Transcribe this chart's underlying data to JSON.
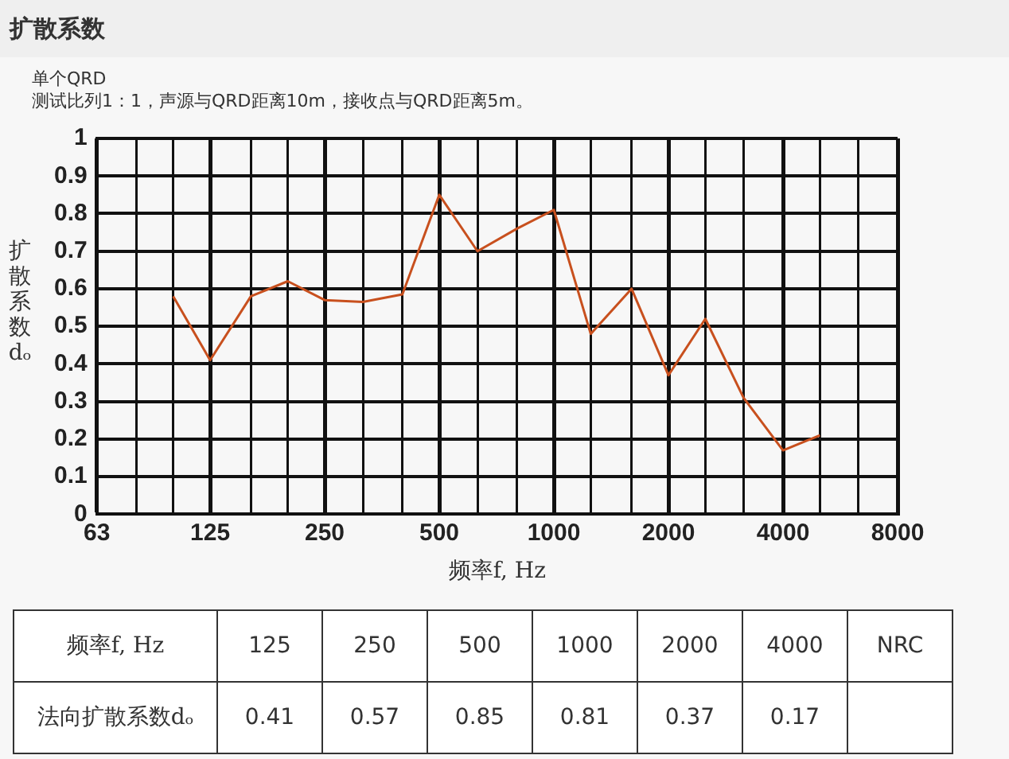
{
  "chart_data": [
    {
      "type": "line",
      "title": "扩散系数",
      "subtitle": "单个QRD",
      "annotations": [
        "测试比列1：1，声源与QRD距离10m，接收点与QRD距离5m。"
      ],
      "xlabel": "频率f, Hz",
      "ylabel": "扩散系数dₒ",
      "log": "x",
      "x": [
        100,
        125,
        160,
        200,
        250,
        315,
        400,
        500,
        630,
        800,
        1000,
        1250,
        1600,
        2000,
        2500,
        3150,
        4000,
        5000
      ],
      "series": [
        {
          "color": "#c8501e",
          "values": [
            0.58,
            0.41,
            0.58,
            0.62,
            0.57,
            0.565,
            0.585,
            0.85,
            0.7,
            0.76,
            0.81,
            0.48,
            0.6,
            0.37,
            0.52,
            0.31,
            0.17,
            0.21
          ]
        }
      ],
      "xlim": [
        63,
        8000
      ],
      "xticks": [
        63,
        {
          "value": 80,
          "label": null
        },
        {
          "value": 100,
          "label": null
        },
        125,
        {
          "value": 160,
          "label": null
        },
        {
          "value": 200,
          "label": null
        },
        250,
        {
          "value": 315,
          "label": null
        },
        {
          "value": 400,
          "label": null
        },
        500,
        {
          "value": 630,
          "label": null
        },
        {
          "value": 800,
          "label": null
        },
        1000,
        {
          "value": 1250,
          "label": null
        },
        {
          "value": 1600,
          "label": null
        },
        2000,
        {
          "value": 2500,
          "label": null
        },
        {
          "value": 3150,
          "label": null
        },
        4000,
        {
          "value": 5000,
          "label": null
        },
        {
          "value": 6300,
          "label": null
        },
        8000
      ],
      "ylim": [
        0,
        1
      ],
      "yticks": [
        0,
        0.1,
        0.2,
        0.3,
        0.4,
        0.5,
        0.6,
        0.7,
        0.8,
        0.9,
        1
      ],
      "grid": true,
      "legend": false,
      "marker": "none",
      "line_style": "solid"
    },
    {
      "type": "other",
      "xlabel": "频率f, Hz",
      "ylabel": "法向扩散系数dₒ",
      "categories": [
        "125",
        "250",
        "500",
        "1000",
        "2000",
        "4000",
        "NRC"
      ],
      "values": [
        0.41,
        0.57,
        0.85,
        0.81,
        0.37,
        0.17,
        null
      ],
      "data_labels": true
    }
  ]
}
